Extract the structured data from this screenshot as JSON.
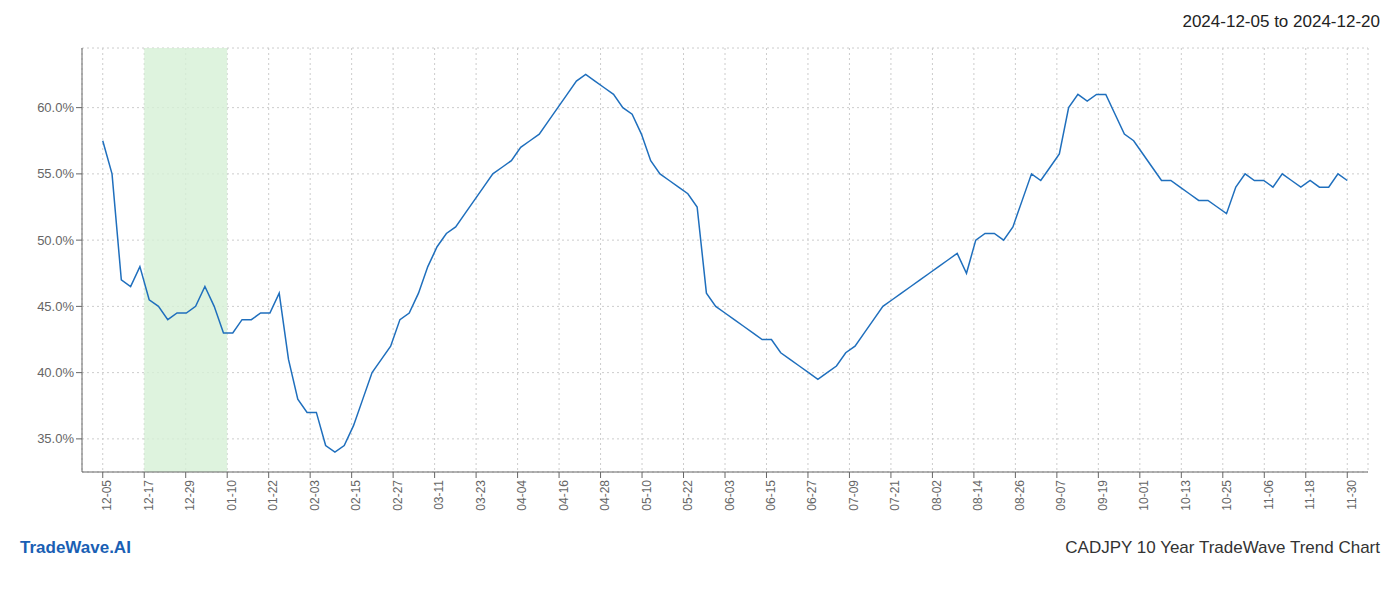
{
  "chart_data": {
    "type": "line",
    "title": "2024-12-05 to 2024-12-20",
    "annotations": [
      {
        "text": "TradeWave.AI",
        "color": "#1a5fb4",
        "position": "left"
      },
      {
        "text": "CADJPY 10 Year TradeWave Trend Chart",
        "color": "#333333",
        "position": "right"
      }
    ],
    "color": "#1f6fbd",
    "grid": true,
    "shaded_region": {
      "start": 1,
      "end": 3,
      "color": "#d6f0d6"
    },
    "xlim": [
      -0.5,
      30.5
    ],
    "xticks": [
      {
        "value": 0,
        "label": "12-05"
      },
      {
        "value": 1,
        "label": "12-17"
      },
      {
        "value": 2,
        "label": "12-29"
      },
      {
        "value": 3,
        "label": "01-10"
      },
      {
        "value": 4,
        "label": "01-22"
      },
      {
        "value": 5,
        "label": "02-03"
      },
      {
        "value": 6,
        "label": "02-15"
      },
      {
        "value": 7,
        "label": "02-27"
      },
      {
        "value": 8,
        "label": "03-11"
      },
      {
        "value": 9,
        "label": "03-23"
      },
      {
        "value": 10,
        "label": "04-04"
      },
      {
        "value": 11,
        "label": "04-16"
      },
      {
        "value": 12,
        "label": "04-28"
      },
      {
        "value": 13,
        "label": "05-10"
      },
      {
        "value": 14,
        "label": "05-22"
      },
      {
        "value": 15,
        "label": "06-03"
      },
      {
        "value": 16,
        "label": "06-15"
      },
      {
        "value": 17,
        "label": "06-27"
      },
      {
        "value": 18,
        "label": "07-09"
      },
      {
        "value": 19,
        "label": "07-21"
      },
      {
        "value": 20,
        "label": "08-02"
      },
      {
        "value": 21,
        "label": "08-14"
      },
      {
        "value": 22,
        "label": "08-26"
      },
      {
        "value": 23,
        "label": "09-07"
      },
      {
        "value": 24,
        "label": "09-19"
      },
      {
        "value": 25,
        "label": "10-01"
      },
      {
        "value": 26,
        "label": "10-13"
      },
      {
        "value": 27,
        "label": "10-25"
      },
      {
        "value": 28,
        "label": "11-06"
      },
      {
        "value": 29,
        "label": "11-18"
      },
      {
        "value": 30,
        "label": "11-30"
      }
    ],
    "ylim": [
      0.325,
      0.645
    ],
    "yticks": [
      {
        "value": 0.35,
        "label": "35.0%"
      },
      {
        "value": 0.4,
        "label": "40.0%"
      },
      {
        "value": 0.45,
        "label": "45.0%"
      },
      {
        "value": 0.5,
        "label": "50.0%"
      },
      {
        "value": 0.55,
        "label": "55.0%"
      },
      {
        "value": 0.6,
        "label": "60.0%"
      }
    ],
    "x": [
      0,
      0.2239,
      0.4478,
      0.6716,
      0.8955,
      1.1194,
      1.3433,
      1.5672,
      1.791,
      2.0149,
      2.2388,
      2.4627,
      2.6866,
      2.9104,
      3.1343,
      3.3582,
      3.5821,
      3.806,
      4.0299,
      4.2537,
      4.4776,
      4.7015,
      4.9254,
      5.1493,
      5.3731,
      5.597,
      5.8209,
      6.0448,
      6.2687,
      6.4925,
      6.7164,
      6.9403,
      7.1642,
      7.3881,
      7.6119,
      7.8358,
      8.0597,
      8.2836,
      8.5075,
      8.7313,
      8.9552,
      9.1791,
      9.403,
      9.6269,
      9.8507,
      10.0746,
      10.2985,
      10.5224,
      10.7463,
      10.9701,
      11.194,
      11.4179,
      11.6418,
      11.8657,
      12.0896,
      12.3134,
      12.5373,
      12.7612,
      12.9851,
      13.209,
      13.4328,
      13.6567,
      13.8806,
      14.1045,
      14.3284,
      14.5522,
      14.7761,
      15,
      15.2239,
      15.4478,
      15.6716,
      15.8955,
      16.1194,
      16.3433,
      16.5672,
      16.791,
      17.0149,
      17.2388,
      17.4627,
      17.6866,
      17.9104,
      18.1343,
      18.3582,
      18.5821,
      18.806,
      19.0299,
      19.2537,
      19.4776,
      19.7015,
      19.9254,
      20.1493,
      20.3731,
      20.597,
      20.8209,
      21.0448,
      21.2687,
      21.4925,
      21.7164,
      21.9403,
      22.1642,
      22.3881,
      22.6119,
      22.8358,
      23.0597,
      23.2836,
      23.5075,
      23.7313,
      23.9552,
      24.1791,
      24.403,
      24.6269,
      24.8507,
      25.0746,
      25.2985,
      25.5224,
      25.7463,
      25.9701,
      26.194,
      26.4179,
      26.6418,
      26.8657,
      27.0896,
      27.3134,
      27.5373,
      27.7612,
      27.9851,
      28.209,
      28.4328,
      28.6567,
      28.8806,
      29.1045,
      29.3284,
      29.5522,
      29.7761,
      30
    ],
    "values": [
      0.575,
      0.55,
      0.47,
      0.465,
      0.48,
      0.455,
      0.45,
      0.44,
      0.445,
      0.445,
      0.45,
      0.465,
      0.45,
      0.43,
      0.43,
      0.44,
      0.44,
      0.445,
      0.445,
      0.46,
      0.41,
      0.38,
      0.37,
      0.37,
      0.345,
      0.34,
      0.345,
      0.36,
      0.38,
      0.4,
      0.41,
      0.42,
      0.44,
      0.445,
      0.46,
      0.48,
      0.495,
      0.505,
      0.51,
      0.52,
      0.53,
      0.54,
      0.55,
      0.555,
      0.56,
      0.57,
      0.575,
      0.58,
      0.59,
      0.6,
      0.61,
      0.62,
      0.625,
      0.62,
      0.615,
      0.61,
      0.6,
      0.595,
      0.58,
      0.56,
      0.55,
      0.545,
      0.54,
      0.535,
      0.525,
      0.46,
      0.45,
      0.445,
      0.44,
      0.435,
      0.43,
      0.425,
      0.425,
      0.415,
      0.41,
      0.405,
      0.4,
      0.395,
      0.4,
      0.405,
      0.415,
      0.42,
      0.43,
      0.44,
      0.45,
      0.455,
      0.46,
      0.465,
      0.47,
      0.475,
      0.48,
      0.485,
      0.49,
      0.475,
      0.5,
      0.505,
      0.505,
      0.5,
      0.51,
      0.53,
      0.55,
      0.545,
      0.555,
      0.565,
      0.6,
      0.61,
      0.605,
      0.61,
      0.61,
      0.595,
      0.58,
      0.575,
      0.565,
      0.555,
      0.545,
      0.545,
      0.54,
      0.535,
      0.53,
      0.53,
      0.525,
      0.52,
      0.54,
      0.55,
      0.545,
      0.545,
      0.54,
      0.55,
      0.545,
      0.54,
      0.545,
      0.54,
      0.54,
      0.55,
      0.545
    ]
  }
}
